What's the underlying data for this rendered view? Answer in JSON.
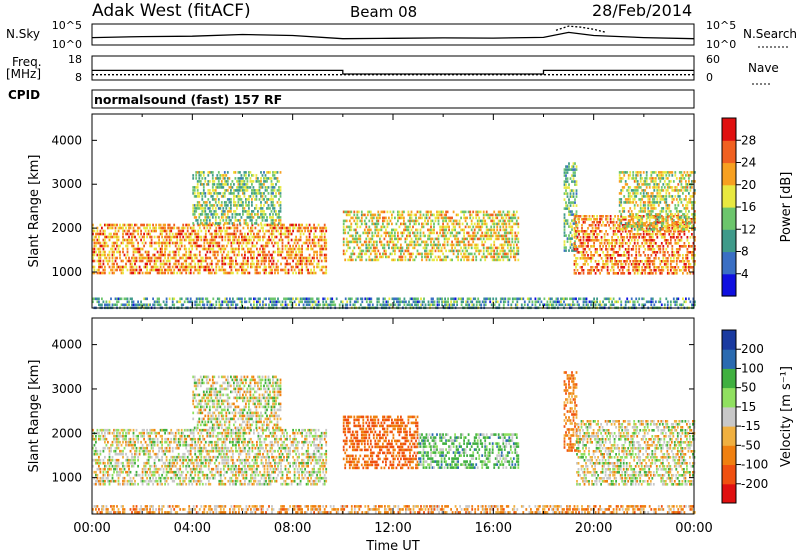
{
  "header": {
    "station": "Adak West (fitACF)",
    "beam": "Beam 08",
    "date": "28/Feb/2014"
  },
  "strip_labels": {
    "nsky": "N.Sky",
    "nsearch": "N.Search",
    "freq_line1": "Freq.",
    "freq_line2": "[MHz]",
    "nave": "Nave",
    "cpid": "CPID",
    "cpid_text": "normalsound (fast) 157 RF"
  },
  "chart_data": [
    {
      "type": "line",
      "panel": "noise",
      "y_ticks": [
        "10^5",
        "10^0"
      ],
      "y2_ticks": [
        "10^5",
        "10^0"
      ],
      "series": [
        {
          "name": "N.Sky",
          "x": [
            0,
            2,
            4,
            6,
            8,
            10,
            12,
            14,
            16,
            18,
            19,
            20,
            22,
            24
          ],
          "y_rel": [
            0.35,
            0.4,
            0.42,
            0.5,
            0.45,
            0.3,
            0.32,
            0.34,
            0.33,
            0.36,
            0.6,
            0.45,
            0.35,
            0.3
          ]
        },
        {
          "name": "N.Search",
          "x": [
            18.5,
            19,
            19.5,
            20,
            20.5
          ],
          "y_rel": [
            0.7,
            0.9,
            0.85,
            0.75,
            0.6
          ]
        }
      ]
    },
    {
      "type": "line",
      "panel": "frequency",
      "y_ticks": [
        18,
        8
      ],
      "y2_ticks": [
        60,
        0
      ],
      "series": [
        {
          "name": "Freq.",
          "x": [
            0,
            10,
            10,
            18,
            18,
            24
          ],
          "y": [
            12,
            12,
            10.5,
            10.5,
            12,
            12
          ]
        },
        {
          "name": "Nave",
          "x": [
            0,
            10,
            18,
            24
          ],
          "y": [
            10.2,
            10.2,
            10.2,
            10.2
          ]
        }
      ]
    },
    {
      "type": "heatmap",
      "panel": "power",
      "xlabel": "",
      "ylabel": "Slant Range [km]",
      "xlim": [
        0,
        24
      ],
      "ylim": [
        180,
        4600
      ],
      "y_ticks": [
        1000,
        2000,
        3000,
        4000
      ],
      "colorbar": {
        "label": "Power [dB]",
        "ticks": [
          4,
          8,
          12,
          16,
          20,
          24,
          28
        ],
        "range": [
          0,
          32
        ],
        "colors": [
          "#1010e0",
          "#3a6fc4",
          "#3f9a8a",
          "#6cc56c",
          "#e8e840",
          "#f7a020",
          "#f06020",
          "#e01010"
        ]
      },
      "regions": [
        {
          "t": [
            0,
            9.3
          ],
          "r": [
            950,
            2100
          ],
          "level": 0.75
        },
        {
          "t": [
            4,
            7.5
          ],
          "r": [
            2100,
            3300
          ],
          "level": 0.45
        },
        {
          "t": [
            10,
            17
          ],
          "r": [
            1300,
            2400
          ],
          "level": 0.6
        },
        {
          "t": [
            18.8,
            19.3
          ],
          "r": [
            1500,
            3500
          ],
          "level": 0.4
        },
        {
          "t": [
            19.2,
            24
          ],
          "r": [
            950,
            2300
          ],
          "level": 0.8
        },
        {
          "t": [
            21,
            24
          ],
          "r": [
            2000,
            3300
          ],
          "level": 0.55
        },
        {
          "t": [
            0,
            24
          ],
          "r": [
            200,
            420
          ],
          "level": 0.3
        }
      ]
    },
    {
      "type": "heatmap",
      "panel": "velocity",
      "xlabel": "Time UT",
      "ylabel": "Slant Range [km]",
      "xlim": [
        0,
        24
      ],
      "ylim": [
        180,
        4600
      ],
      "y_ticks": [
        1000,
        2000,
        3000,
        4000
      ],
      "x_ticks": [
        "00:00",
        "04:00",
        "08:00",
        "12:00",
        "16:00",
        "20:00",
        "00:00"
      ],
      "colorbar": {
        "label": "Velocity [m s⁻¹]",
        "ticks": [
          -200,
          -100,
          -50,
          -15,
          15,
          50,
          100,
          200
        ],
        "colors": [
          "#e01010",
          "#f05010",
          "#f08010",
          "#f0b040",
          "#c8c8c8",
          "#90e060",
          "#40b040",
          "#2a6ab0",
          "#1a3aa0"
        ]
      },
      "regions": [
        {
          "t": [
            0,
            9.3
          ],
          "r": [
            850,
            2100
          ],
          "value": 0
        },
        {
          "t": [
            4,
            7.5
          ],
          "r": [
            2100,
            3300
          ],
          "value": 0
        },
        {
          "t": [
            10,
            13
          ],
          "r": [
            1200,
            2400
          ],
          "value": -80
        },
        {
          "t": [
            13,
            17
          ],
          "r": [
            1200,
            2000
          ],
          "value": 40
        },
        {
          "t": [
            18.8,
            19.3
          ],
          "r": [
            1600,
            3400
          ],
          "value": -60
        },
        {
          "t": [
            19.3,
            24
          ],
          "r": [
            850,
            2300
          ],
          "value": 0
        },
        {
          "t": [
            0,
            24
          ],
          "r": [
            200,
            380
          ],
          "value": -40
        }
      ]
    }
  ]
}
